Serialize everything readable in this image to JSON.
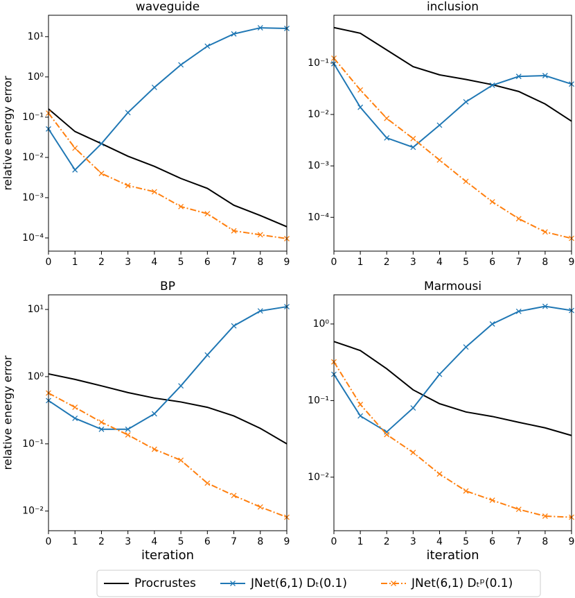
{
  "chart_data": [
    {
      "type": "line",
      "title": "waveguide",
      "ylabel": "relative energy error",
      "yscale": "log",
      "x": [
        0,
        1,
        2,
        3,
        4,
        5,
        6,
        7,
        8,
        9
      ],
      "xlim": [
        0,
        9
      ],
      "xticks": [
        0,
        1,
        2,
        3,
        4,
        5,
        6,
        7,
        8,
        9
      ],
      "ylim": [
        4.7e-05,
        34
      ],
      "yticks": [
        {
          "value": 10,
          "label": "10¹"
        },
        {
          "value": 1,
          "label": "10⁰"
        },
        {
          "value": 0.1,
          "label": "10⁻¹"
        },
        {
          "value": 0.01,
          "label": "10⁻²"
        },
        {
          "value": 0.001,
          "label": "10⁻³"
        },
        {
          "value": 0.0001,
          "label": "10⁻⁴"
        }
      ],
      "series": [
        {
          "name": "Procrustes",
          "color": "#000000",
          "linestyle": "solid",
          "values": [
            0.16,
            0.044,
            0.022,
            0.0107,
            0.006,
            0.003,
            0.0017,
            0.00065,
            0.00036,
            0.00019
          ]
        },
        {
          "name": "JNet(6,1) Dₜ(0.1)",
          "color": "#1f77b4",
          "linestyle": "solid",
          "marker": "x",
          "values": [
            0.051,
            0.0049,
            0.022,
            0.13,
            0.55,
            2.0,
            5.8,
            11.7,
            16.6,
            16
          ]
        },
        {
          "name": "JNet(6,1) Dₜᵖ(0.1)",
          "color": "#ff7f0e",
          "linestyle": "dashdot",
          "marker": "x",
          "values": [
            0.126,
            0.017,
            0.004,
            0.002,
            0.0014,
            0.0006,
            0.0004,
            0.00015,
            0.00012,
            9.6e-05
          ]
        }
      ]
    },
    {
      "type": "line",
      "title": "inclusion",
      "yscale": "log",
      "x": [
        0,
        1,
        2,
        3,
        4,
        5,
        6,
        7,
        8,
        9
      ],
      "xlim": [
        0,
        9
      ],
      "xticks": [
        0,
        1,
        2,
        3,
        4,
        5,
        6,
        7,
        8,
        9
      ],
      "ylim": [
        2.2e-05,
        0.85
      ],
      "yticks": [
        {
          "value": 0.1,
          "label": "10⁻¹"
        },
        {
          "value": 0.01,
          "label": "10⁻²"
        },
        {
          "value": 0.001,
          "label": "10⁻³"
        },
        {
          "value": 0.0001,
          "label": "10⁻⁴"
        }
      ],
      "series": [
        {
          "color": "#000000",
          "linestyle": "solid",
          "values": [
            0.49,
            0.38,
            0.18,
            0.085,
            0.059,
            0.048,
            0.038,
            0.028,
            0.016,
            0.0074
          ]
        },
        {
          "color": "#1f77b4",
          "linestyle": "solid",
          "marker": "x",
          "values": [
            0.097,
            0.0138,
            0.0035,
            0.0023,
            0.0062,
            0.0176,
            0.037,
            0.055,
            0.057,
            0.039
          ]
        },
        {
          "color": "#ff7f0e",
          "linestyle": "dashdot",
          "marker": "x",
          "values": [
            0.124,
            0.03,
            0.0084,
            0.0034,
            0.0013,
            0.0005,
            0.0002,
            9.4e-05,
            5.2e-05,
            3.9e-05
          ]
        }
      ]
    },
    {
      "type": "line",
      "title": "BP",
      "ylabel": "relative energy error",
      "xlabel": "iteration",
      "yscale": "log",
      "x": [
        0,
        1,
        2,
        3,
        4,
        5,
        6,
        7,
        8,
        9
      ],
      "xlim": [
        0,
        9
      ],
      "xticks": [
        0,
        1,
        2,
        3,
        4,
        5,
        6,
        7,
        8,
        9
      ],
      "ylim": [
        0.0051,
        16.5
      ],
      "yticks": [
        {
          "value": 10,
          "label": "10¹"
        },
        {
          "value": 1,
          "label": "10⁰"
        },
        {
          "value": 0.1,
          "label": "10⁻¹"
        },
        {
          "value": 0.01,
          "label": "10⁻²"
        }
      ],
      "series": [
        {
          "color": "#000000",
          "linestyle": "solid",
          "values": [
            1.1,
            0.91,
            0.73,
            0.58,
            0.48,
            0.42,
            0.35,
            0.26,
            0.17,
            0.1
          ]
        },
        {
          "color": "#1f77b4",
          "linestyle": "solid",
          "marker": "x",
          "values": [
            0.44,
            0.24,
            0.165,
            0.165,
            0.28,
            0.73,
            2.1,
            5.7,
            9.5,
            11
          ]
        },
        {
          "color": "#ff7f0e",
          "linestyle": "dashdot",
          "marker": "x",
          "values": [
            0.57,
            0.35,
            0.21,
            0.136,
            0.083,
            0.057,
            0.026,
            0.017,
            0.0115,
            0.0081
          ]
        }
      ]
    },
    {
      "type": "line",
      "title": "Marmousi",
      "xlabel": "iteration",
      "yscale": "log",
      "x": [
        0,
        1,
        2,
        3,
        4,
        5,
        6,
        7,
        8,
        9
      ],
      "xlim": [
        0,
        9
      ],
      "xticks": [
        0,
        1,
        2,
        3,
        4,
        5,
        6,
        7,
        8,
        9
      ],
      "ylim": [
        0.002,
        2.4
      ],
      "yticks": [
        {
          "value": 1,
          "label": "10⁰"
        },
        {
          "value": 0.1,
          "label": "10⁻¹"
        },
        {
          "value": 0.01,
          "label": "10⁻²"
        }
      ],
      "series": [
        {
          "color": "#000000",
          "linestyle": "solid",
          "values": [
            0.59,
            0.45,
            0.26,
            0.138,
            0.091,
            0.071,
            0.062,
            0.052,
            0.044,
            0.035
          ]
        },
        {
          "color": "#1f77b4",
          "linestyle": "solid",
          "marker": "x",
          "values": [
            0.22,
            0.063,
            0.039,
            0.08,
            0.22,
            0.5,
            1.0,
            1.46,
            1.7,
            1.5
          ]
        },
        {
          "color": "#ff7f0e",
          "linestyle": "dashdot",
          "marker": "x",
          "values": [
            0.32,
            0.089,
            0.036,
            0.021,
            0.011,
            0.0066,
            0.005,
            0.0038,
            0.0031,
            0.003
          ]
        }
      ]
    }
  ]
}
